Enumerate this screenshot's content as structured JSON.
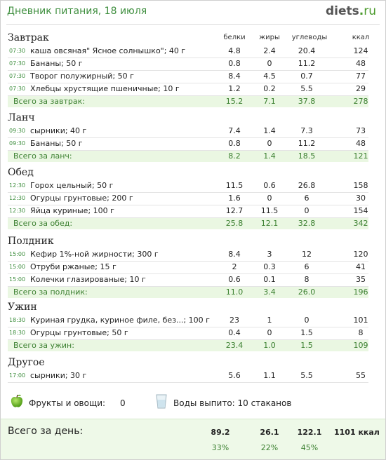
{
  "header": {
    "title": "Дневник питания, 18 июля",
    "logo_main": "diets",
    "logo_dot": ".",
    "logo_tld": "ru"
  },
  "columns": {
    "protein": "белки",
    "fat": "жиры",
    "carbs": "углеводы",
    "kcal": "ккал"
  },
  "meals": [
    {
      "name": "Завтрак",
      "items": [
        {
          "time": "07:30",
          "food": "каша овсяная\" Ясное солнышко\"; 40 г",
          "protein": "4.8",
          "fat": "2.4",
          "carbs": "20.4",
          "kcal": "124"
        },
        {
          "time": "07:30",
          "food": "Бананы; 50 г",
          "protein": "0.8",
          "fat": "0",
          "carbs": "11.2",
          "kcal": "48"
        },
        {
          "time": "07:30",
          "food": "Творог полужирный; 50 г",
          "protein": "8.4",
          "fat": "4.5",
          "carbs": "0.7",
          "kcal": "77"
        },
        {
          "time": "07:30",
          "food": "Хлебцы хрустящие пшеничные; 10 г",
          "protein": "1.2",
          "fat": "0.2",
          "carbs": "5.5",
          "kcal": "29"
        }
      ],
      "total": {
        "label": "Всего за завтрак:",
        "protein": "15.2",
        "fat": "7.1",
        "carbs": "37.8",
        "kcal": "278"
      }
    },
    {
      "name": "Ланч",
      "items": [
        {
          "time": "09:30",
          "food": "сырники; 40 г",
          "protein": "7.4",
          "fat": "1.4",
          "carbs": "7.3",
          "kcal": "73"
        },
        {
          "time": "09:30",
          "food": "Бананы; 50 г",
          "protein": "0.8",
          "fat": "0",
          "carbs": "11.2",
          "kcal": "48"
        }
      ],
      "total": {
        "label": "Всего за ланч:",
        "protein": "8.2",
        "fat": "1.4",
        "carbs": "18.5",
        "kcal": "121"
      }
    },
    {
      "name": "Обед",
      "items": [
        {
          "time": "12:30",
          "food": "Горох цельный; 50 г",
          "protein": "11.5",
          "fat": "0.6",
          "carbs": "26.8",
          "kcal": "158"
        },
        {
          "time": "12:30",
          "food": "Огурцы грунтовые; 200 г",
          "protein": "1.6",
          "fat": "0",
          "carbs": "6",
          "kcal": "30"
        },
        {
          "time": "12:30",
          "food": "Яйца куриные; 100 г",
          "protein": "12.7",
          "fat": "11.5",
          "carbs": "0",
          "kcal": "154"
        }
      ],
      "total": {
        "label": "Всего за обед:",
        "protein": "25.8",
        "fat": "12.1",
        "carbs": "32.8",
        "kcal": "342"
      }
    },
    {
      "name": "Полдник",
      "items": [
        {
          "time": "15:00",
          "food": "Кефир 1%-ной жирности; 300 г",
          "protein": "8.4",
          "fat": "3",
          "carbs": "12",
          "kcal": "120"
        },
        {
          "time": "15:00",
          "food": "Отруби ржаные; 15 г",
          "protein": "2",
          "fat": "0.3",
          "carbs": "6",
          "kcal": "41"
        },
        {
          "time": "15:00",
          "food": "Колечки глазированые; 10 г",
          "protein": "0.6",
          "fat": "0.1",
          "carbs": "8",
          "kcal": "35"
        }
      ],
      "total": {
        "label": "Всего за полдник:",
        "protein": "11.0",
        "fat": "3.4",
        "carbs": "26.0",
        "kcal": "196"
      }
    },
    {
      "name": "Ужин",
      "items": [
        {
          "time": "18:30",
          "food": "Куриная грудка, куриное филе, без...; 100 г",
          "protein": "23",
          "fat": "1",
          "carbs": "0",
          "kcal": "101"
        },
        {
          "time": "18:30",
          "food": "Огурцы грунтовые; 50 г",
          "protein": "0.4",
          "fat": "0",
          "carbs": "1.5",
          "kcal": "8"
        }
      ],
      "total": {
        "label": "Всего за ужин:",
        "protein": "23.4",
        "fat": "1.0",
        "carbs": "1.5",
        "kcal": "109"
      }
    },
    {
      "name": "Другое",
      "items": [
        {
          "time": "17:00",
          "food": "сырники; 30 г",
          "protein": "5.6",
          "fat": "1.1",
          "carbs": "5.5",
          "kcal": "55"
        }
      ],
      "total": null
    }
  ],
  "extras": {
    "fruits_label": "Фрукты и овощи:",
    "fruits_value": "0",
    "water_label": "Воды выпито: 10 стаканов",
    "icons": [
      "apple-icon",
      "glass-icon"
    ]
  },
  "day_total": {
    "label": "Всего за день:",
    "protein": "89.2",
    "fat": "26.1",
    "carbs": "122.1",
    "kcal": "1101 ккал",
    "protein_pct": "33%",
    "fat_pct": "22%",
    "carbs_pct": "45%"
  },
  "colors": {
    "accent_green": "#3f8f3f",
    "total_row_bg": "#eaf7e2",
    "day_bg": "#eef9e8"
  }
}
